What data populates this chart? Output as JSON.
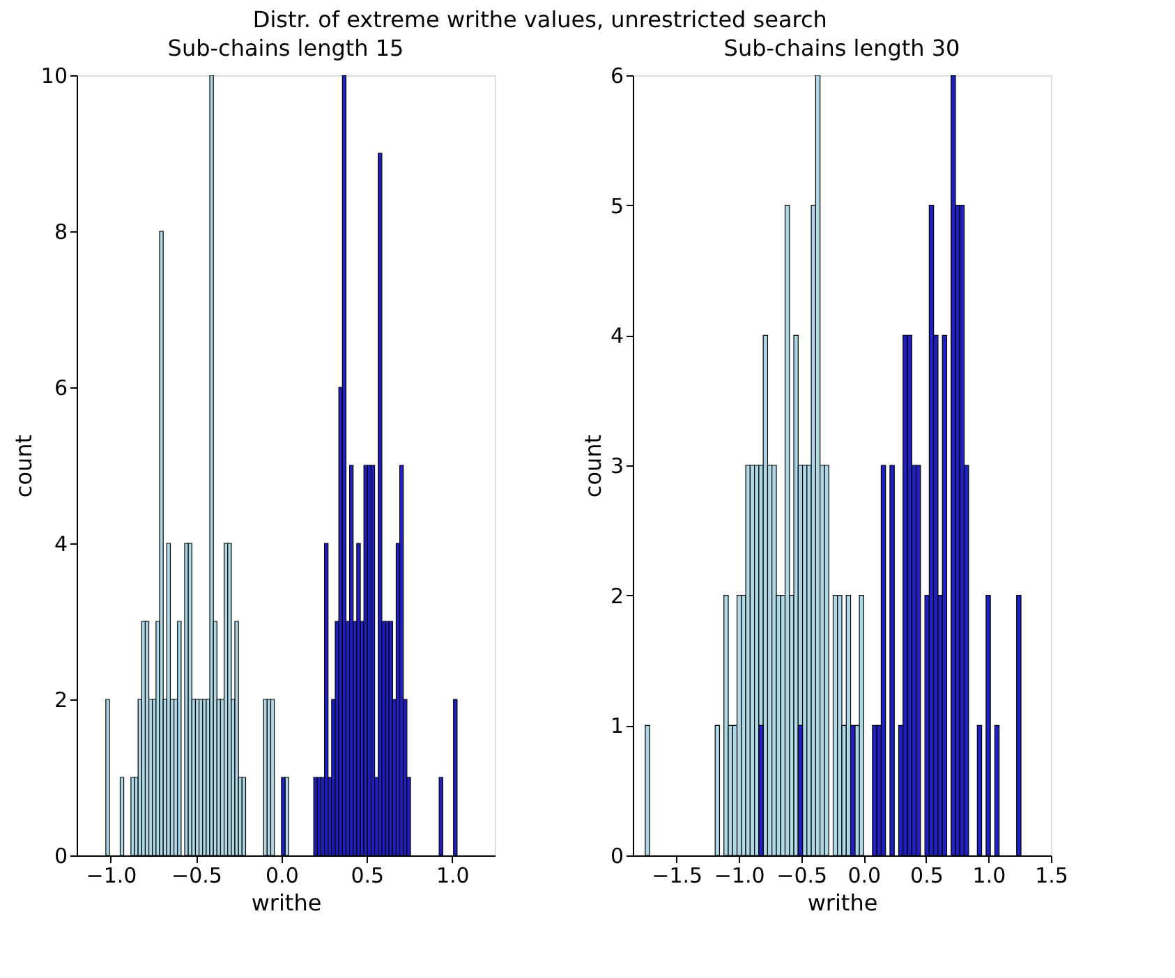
{
  "chart_data": [
    {
      "type": "histogram",
      "title": "Sub-chains length 15",
      "annotations": [
        "Distr. of extreme writhe values, unrestricted search"
      ],
      "xlabel": "writhe",
      "ylabel": "count",
      "grid": false,
      "xlim": [
        -1.2,
        1.25
      ],
      "xticks": [
        {
          "value": -1.0,
          "label": "−1.0"
        },
        {
          "value": -0.5,
          "label": "−0.5"
        },
        {
          "value": 0,
          "label": "0.0"
        },
        {
          "value": 0.5,
          "label": "0.5"
        },
        {
          "value": 1.0,
          "label": "1.0"
        }
      ],
      "ylim": [
        0,
        10
      ],
      "yticks": [
        0,
        2,
        4,
        6,
        8,
        10
      ],
      "bins": [
        -1.05,
        -1.029,
        -1.008,
        -0.987,
        -0.966,
        -0.945,
        -0.924,
        -0.903,
        -0.882,
        -0.861,
        -0.84,
        -0.819,
        -0.798,
        -0.777,
        -0.756,
        -0.735,
        -0.714,
        -0.693,
        -0.672,
        -0.651,
        -0.63,
        -0.609,
        -0.588,
        -0.567,
        -0.546,
        -0.525,
        -0.504,
        -0.483,
        -0.462,
        -0.441,
        -0.42,
        -0.399,
        -0.378,
        -0.357,
        -0.336,
        -0.315,
        -0.294,
        -0.273,
        -0.252,
        -0.231,
        -0.21,
        -0.189,
        -0.168,
        -0.147,
        -0.126,
        -0.105,
        -0.084,
        -0.063,
        -0.042,
        -0.021,
        0.0,
        0.021,
        0.042,
        0.063,
        0.084,
        0.105,
        0.126,
        0.147,
        0.168,
        0.189,
        0.21,
        0.231,
        0.252,
        0.273,
        0.294,
        0.315,
        0.336,
        0.357,
        0.378,
        0.399,
        0.42,
        0.441,
        0.462,
        0.483,
        0.504,
        0.525,
        0.546,
        0.567,
        0.588,
        0.609,
        0.63,
        0.651,
        0.672,
        0.693,
        0.714,
        0.735,
        0.756,
        0.777,
        0.798,
        0.819,
        0.84,
        0.861,
        0.882,
        0.903,
        0.924,
        0.945,
        0.966,
        0.987,
        1.008,
        1.029,
        1.05
      ],
      "series": [
        {
          "color": "#add8e6",
          "values": [
            0,
            2,
            0,
            0,
            0,
            1,
            0,
            0,
            1,
            1,
            2,
            3,
            3,
            2,
            2,
            3,
            8,
            2,
            4,
            2,
            2,
            3,
            0,
            4,
            4,
            2,
            2,
            2,
            2,
            2,
            10,
            3,
            2,
            2,
            4,
            4,
            2,
            3,
            1,
            1,
            0,
            0,
            0,
            0,
            0,
            2,
            2,
            2,
            0,
            0,
            0,
            1,
            0,
            0,
            0,
            0,
            0,
            0,
            0,
            0,
            0,
            0,
            0,
            0,
            0,
            0,
            0,
            0,
            0,
            0,
            0,
            0,
            0,
            0,
            0,
            0,
            0,
            0,
            0,
            0,
            0,
            0,
            0,
            0,
            0,
            0,
            0,
            0,
            0,
            0,
            0,
            0,
            0,
            0,
            0,
            0,
            0,
            0,
            0,
            0
          ]
        },
        {
          "color": "#2020c0",
          "values": [
            0,
            0,
            0,
            0,
            0,
            0,
            0,
            0,
            0,
            0,
            0,
            0,
            0,
            0,
            0,
            0,
            0,
            0,
            0,
            0,
            0,
            0,
            0,
            0,
            0,
            0,
            0,
            0,
            0,
            0,
            0,
            0,
            0,
            0,
            0,
            0,
            0,
            0,
            0,
            0,
            0,
            0,
            0,
            0,
            0,
            0,
            0,
            0,
            0,
            0,
            1,
            0,
            0,
            0,
            0,
            0,
            0,
            0,
            0,
            1,
            1,
            1,
            4,
            1,
            2,
            3,
            6,
            10,
            3,
            5,
            3,
            4,
            3,
            5,
            5,
            5,
            1,
            9,
            3,
            3,
            3,
            2,
            4,
            5,
            2,
            1,
            0,
            0,
            0,
            0,
            0,
            0,
            0,
            0,
            1,
            0,
            0,
            0,
            2,
            0
          ]
        }
      ]
    },
    {
      "type": "histogram",
      "title": "Sub-chains length 30",
      "xlabel": "writhe",
      "ylabel": "count",
      "grid": false,
      "xlim": [
        -1.85,
        1.5
      ],
      "xticks": [
        {
          "value": -1.5,
          "label": "−1.5"
        },
        {
          "value": -1.0,
          "label": "−1.0"
        },
        {
          "value": -0.5,
          "label": "−0.5"
        },
        {
          "value": 0,
          "label": "0.0"
        },
        {
          "value": 0.5,
          "label": "0.5"
        },
        {
          "value": 1.0,
          "label": "1.0"
        },
        {
          "value": 1.5,
          "label": "1.5"
        }
      ],
      "ylim": [
        0,
        6
      ],
      "yticks": [
        0,
        1,
        2,
        3,
        4,
        5,
        6
      ],
      "bins": [
        -1.75,
        -1.715,
        -1.68,
        -1.645,
        -1.61,
        -1.575,
        -1.54,
        -1.505,
        -1.47,
        -1.435,
        -1.4,
        -1.365,
        -1.33,
        -1.295,
        -1.26,
        -1.225,
        -1.19,
        -1.155,
        -1.12,
        -1.085,
        -1.05,
        -1.015,
        -0.98,
        -0.945,
        -0.91,
        -0.875,
        -0.84,
        -0.805,
        -0.77,
        -0.735,
        -0.7,
        -0.665,
        -0.63,
        -0.595,
        -0.56,
        -0.525,
        -0.49,
        -0.455,
        -0.42,
        -0.385,
        -0.35,
        -0.315,
        -0.28,
        -0.245,
        -0.21,
        -0.175,
        -0.14,
        -0.105,
        -0.07,
        -0.035,
        0.0,
        0.035,
        0.07,
        0.105,
        0.14,
        0.175,
        0.21,
        0.245,
        0.28,
        0.315,
        0.35,
        0.385,
        0.42,
        0.455,
        0.49,
        0.525,
        0.56,
        0.595,
        0.63,
        0.665,
        0.7,
        0.735,
        0.77,
        0.805,
        0.84,
        0.875,
        0.91,
        0.945,
        0.98,
        1.015,
        1.05,
        1.085,
        1.12,
        1.155,
        1.19,
        1.225,
        1.26,
        1.295
      ],
      "series": [
        {
          "color": "#add8e6",
          "values": [
            1,
            0,
            0,
            0,
            0,
            0,
            0,
            0,
            0,
            0,
            0,
            0,
            0,
            0,
            0,
            0,
            1,
            0,
            2,
            1,
            1,
            2,
            2,
            3,
            3,
            3,
            3,
            4,
            3,
            3,
            2,
            2,
            5,
            2,
            4,
            3,
            3,
            3,
            5,
            6,
            3,
            3,
            0,
            2,
            2,
            1,
            2,
            0,
            1,
            2,
            0,
            0,
            0,
            0,
            0,
            0,
            0,
            0,
            0,
            0,
            0,
            0,
            0,
            0,
            0,
            0,
            0,
            0,
            0,
            0,
            0,
            0,
            0,
            0,
            0,
            0,
            0,
            0,
            0,
            0,
            0,
            0,
            0,
            0,
            0,
            0,
            0
          ]
        },
        {
          "color": "#2020c0",
          "values": [
            0,
            0,
            0,
            0,
            0,
            0,
            0,
            0,
            0,
            0,
            0,
            0,
            0,
            0,
            0,
            0,
            0,
            0,
            0,
            0,
            0,
            0,
            0,
            0,
            0,
            0,
            1,
            0,
            0,
            0,
            0,
            0,
            0,
            0,
            0,
            1,
            0,
            0,
            0,
            0,
            0,
            0,
            0,
            0,
            0,
            0,
            0,
            1,
            0,
            0,
            0,
            0,
            1,
            1,
            3,
            0,
            3,
            0,
            1,
            4,
            4,
            3,
            3,
            0,
            2,
            5,
            4,
            2,
            4,
            0,
            6,
            5,
            5,
            3,
            0,
            0,
            1,
            0,
            2,
            0,
            1,
            0,
            0,
            0,
            0,
            2,
            0
          ]
        }
      ]
    }
  ]
}
